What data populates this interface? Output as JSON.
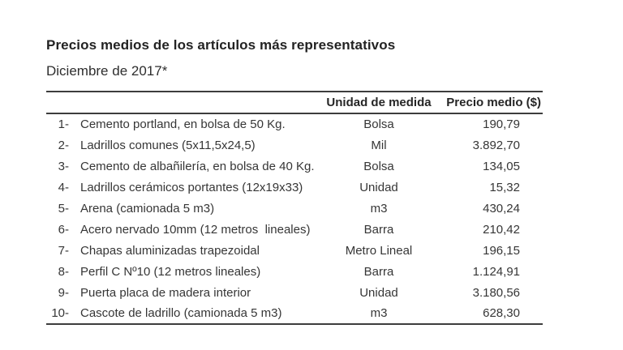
{
  "page": {
    "title": "Precios medios de los artículos más representativos",
    "subtitle": "Diciembre de 2017*"
  },
  "table": {
    "headers": {
      "unit": "Unidad de medida",
      "price": "Precio medio ($)"
    },
    "rows": [
      {
        "num": "1-",
        "article": "Cemento portland, en bolsa de 50 Kg.",
        "unit": "Bolsa",
        "price": "190,79"
      },
      {
        "num": "2-",
        "article": "Ladrillos comunes (5x11,5x24,5)",
        "unit": "Mil",
        "price": "3.892,70"
      },
      {
        "num": "3-",
        "article": "Cemento de albañilería, en bolsa de 40 Kg.",
        "unit": "Bolsa",
        "price": "134,05"
      },
      {
        "num": "4-",
        "article": "Ladrillos cerámicos portantes (12x19x33)",
        "unit": "Unidad",
        "price": "15,32"
      },
      {
        "num": "5-",
        "article": "Arena (camionada 5 m3)",
        "unit": "m3",
        "price": "430,24"
      },
      {
        "num": "6-",
        "article": "Acero nervado 10mm (12 metros  lineales)",
        "unit": "Barra",
        "price": "210,42"
      },
      {
        "num": "7-",
        "article": "Chapas aluminizadas trapezoidal",
        "unit": "Metro Lineal",
        "price": "196,15"
      },
      {
        "num": "8-",
        "article": "Perfil C Nº10 (12 metros lineales)",
        "unit": "Barra",
        "price": "1.124,91"
      },
      {
        "num": "9-",
        "article": "Puerta placa de madera interior",
        "unit": "Unidad",
        "price": "3.180,56"
      },
      {
        "num": "10-",
        "article": "Cascote de ladrillo (camionada 5 m3)",
        "unit": "m3",
        "price": "628,30"
      }
    ]
  },
  "colors": {
    "background": "#ffffff",
    "text": "#363636",
    "title_text": "#232323",
    "border": "#3d3d3d"
  }
}
